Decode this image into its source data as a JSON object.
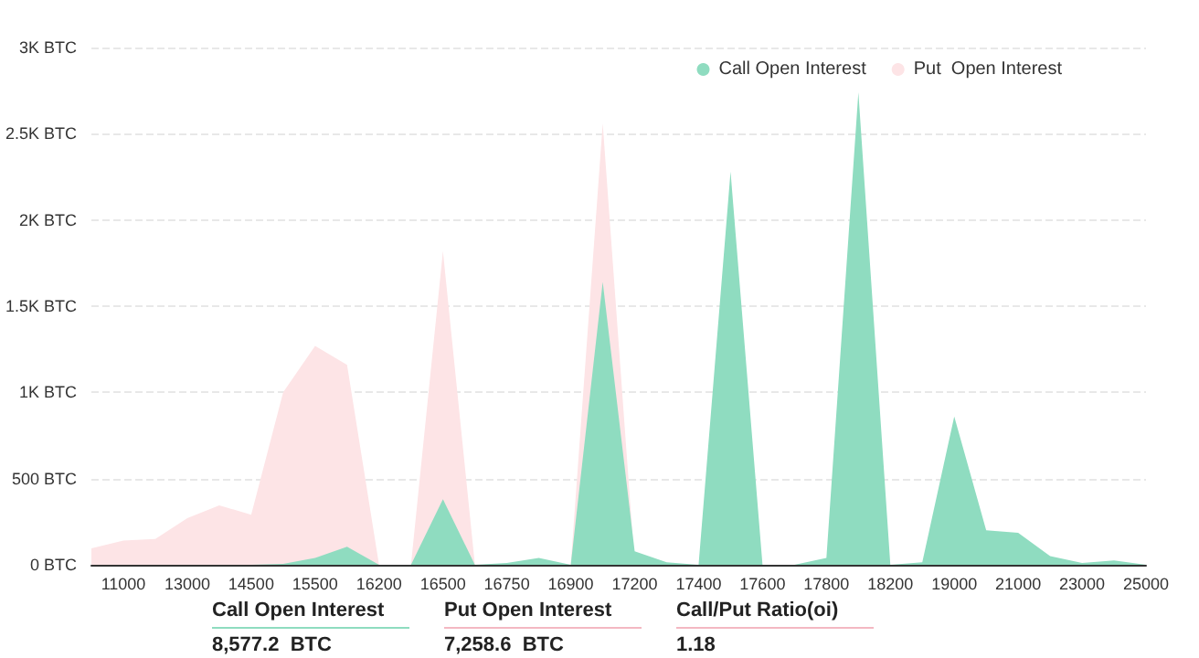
{
  "chart_data": {
    "type": "area",
    "categories": [
      null,
      "11000",
      null,
      "13000",
      null,
      "14500",
      null,
      "15500",
      null,
      "16200",
      null,
      "16500",
      null,
      "16750",
      null,
      "16900",
      null,
      "17200",
      null,
      "17400",
      null,
      "17600",
      null,
      "17800",
      null,
      "18200",
      null,
      "19000",
      null,
      "21000",
      null,
      "23000",
      null,
      "25000"
    ],
    "series": [
      {
        "name": "Put  Open Interest",
        "color": "#fde4e6",
        "values": [
          96,
          140,
          150,
          270,
          345,
          290,
          1000,
          1270,
          1160,
          0,
          0,
          1820,
          0,
          0,
          0,
          0,
          2560,
          0,
          0,
          0,
          0,
          0,
          0,
          0,
          0,
          0,
          0,
          0,
          0,
          0,
          0,
          0,
          0,
          0
        ]
      },
      {
        "name": "Call Open Interest",
        "color": "#8fdcc0",
        "values": [
          0,
          0,
          0,
          0,
          0,
          0,
          5,
          40,
          105,
          0,
          0,
          380,
          0,
          10,
          40,
          0,
          1640,
          78,
          15,
          0,
          2280,
          0,
          0,
          40,
          2740,
          0,
          15,
          860,
          200,
          185,
          50,
          10,
          25,
          0
        ]
      }
    ],
    "ylim": [
      0,
      3000
    ],
    "yticks": [
      {
        "value": 0,
        "label": "0 BTC"
      },
      {
        "value": 500,
        "label": "500 BTC"
      },
      {
        "value": 1000,
        "label": "1K BTC"
      },
      {
        "value": 1500,
        "label": "1.5K BTC"
      },
      {
        "value": 2000,
        "label": "2K BTC"
      },
      {
        "value": 2500,
        "label": "2.5K BTC"
      },
      {
        "value": 3000,
        "label": "3K BTC"
      }
    ],
    "grid": "y",
    "legend": "top right",
    "annotations": [
      "Call Open Interest",
      "8,577.2  BTC",
      "Put Open Interest",
      "7,258.6  BTC",
      "Call/Put Ratio(oi)",
      "1.18"
    ]
  }
}
